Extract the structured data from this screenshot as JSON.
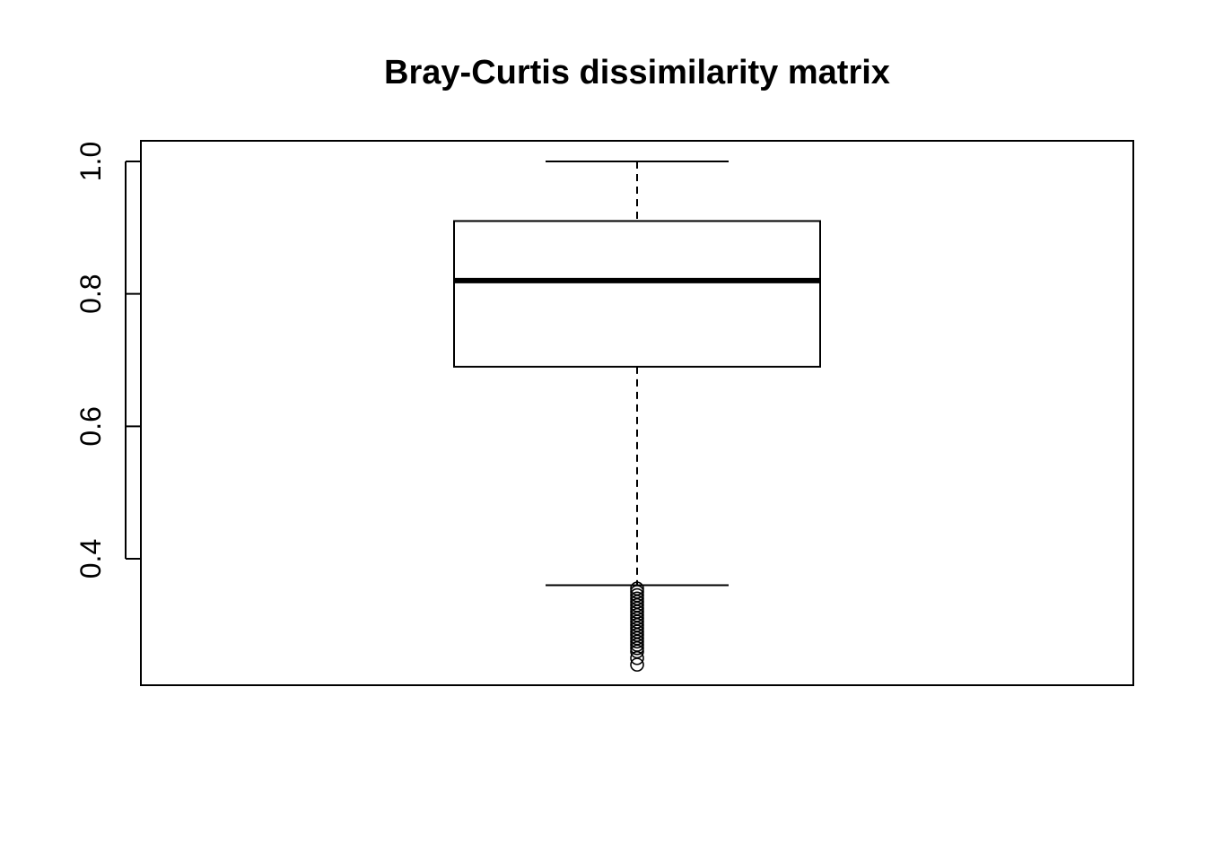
{
  "chart_data": {
    "type": "boxplot",
    "title": "Bray-Curtis dissimilarity matrix",
    "xlabel": "",
    "ylabel": "",
    "ylim": [
      0.22,
      1.03
    ],
    "y_ticks": [
      0.4,
      0.6,
      0.8,
      1.0
    ],
    "y_tick_labels": [
      "0.4",
      "0.6",
      "0.8",
      "1.0"
    ],
    "grid": false,
    "legend": "none",
    "boxes": [
      {
        "whisker_low": 0.36,
        "q1": 0.69,
        "median": 0.82,
        "q3": 0.91,
        "whisker_high": 1.0,
        "outliers": [
          0.355,
          0.35,
          0.345,
          0.34,
          0.335,
          0.33,
          0.325,
          0.32,
          0.315,
          0.31,
          0.305,
          0.3,
          0.295,
          0.29,
          0.285,
          0.28,
          0.275,
          0.27,
          0.265,
          0.26,
          0.25,
          0.24
        ]
      }
    ],
    "colors": {
      "line": "#000000",
      "background": "#ffffff"
    }
  }
}
